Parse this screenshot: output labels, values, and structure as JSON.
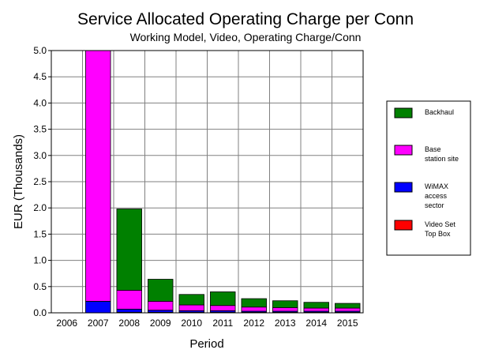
{
  "chart_data": {
    "type": "bar",
    "stacked": true,
    "title": "Service Allocated Operating Charge per Conn",
    "subtitle": "Working Model, Video, Operating Charge/Conn",
    "xlabel": "Period",
    "ylabel": "EUR (Thousands)",
    "ylim": [
      0,
      5.0
    ],
    "yticks": [
      "0.0",
      "0.5",
      "1.0",
      "1.5",
      "2.0",
      "2.5",
      "3.0",
      "3.5",
      "4.0",
      "4.5",
      "5.0"
    ],
    "categories": [
      "2006",
      "2007",
      "2008",
      "2009",
      "2010",
      "2011",
      "2012",
      "2013",
      "2014",
      "2015"
    ],
    "grid": true,
    "legend_position": "right",
    "series": [
      {
        "name": "Video Set Top Box",
        "color": "#ff0000",
        "values": [
          0,
          0,
          0.01,
          0.01,
          0.01,
          0.01,
          0.01,
          0.01,
          0.01,
          0.01
        ]
      },
      {
        "name": "WiMAX access sector",
        "color": "#0000ff",
        "values": [
          0,
          0.22,
          0.06,
          0.04,
          0.03,
          0.03,
          0.02,
          0.02,
          0.02,
          0.02
        ]
      },
      {
        "name": "Base station site",
        "color": "#ff00ff",
        "values": [
          0,
          4.9,
          0.36,
          0.17,
          0.11,
          0.1,
          0.08,
          0.07,
          0.06,
          0.06
        ]
      },
      {
        "name": "Backhaul",
        "color": "#008000",
        "values": [
          0,
          0,
          1.55,
          0.42,
          0.2,
          0.26,
          0.16,
          0.13,
          0.11,
          0.09
        ]
      }
    ],
    "legend": [
      {
        "lines": [
          "Backhaul"
        ],
        "color": "#008000"
      },
      {
        "lines": [
          "Base",
          "station site"
        ],
        "color": "#ff00ff"
      },
      {
        "lines": [
          "WiMAX",
          "access",
          "sector"
        ],
        "color": "#0000ff"
      },
      {
        "lines": [
          "Video Set",
          "Top Box"
        ],
        "color": "#ff0000"
      }
    ]
  }
}
